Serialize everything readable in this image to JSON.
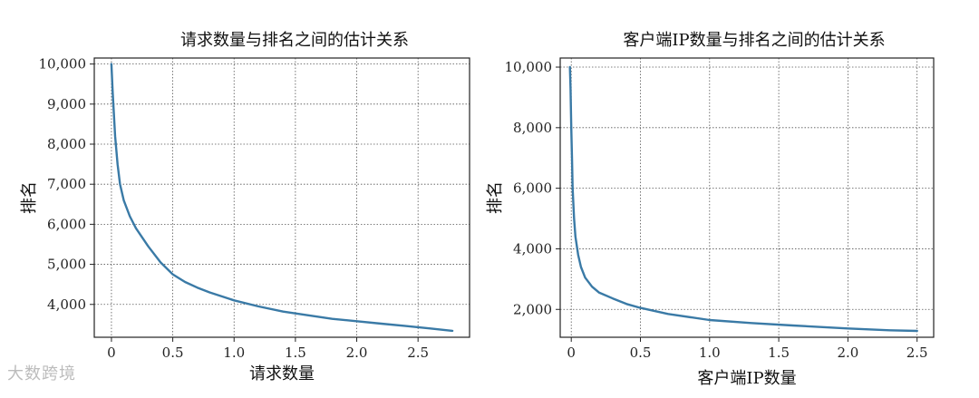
{
  "watermark": "大数跨境",
  "chart_data": [
    {
      "type": "line",
      "title": "请求数量与排名之间的估计关系",
      "xlabel": "请求数量",
      "ylabel": "排名",
      "xlim": [
        -0.14,
        2.92
      ],
      "ylim": [
        3180,
        10150
      ],
      "xticks": [
        0,
        0.5,
        1.0,
        1.5,
        2.0,
        2.5
      ],
      "xtick_labels": [
        "0",
        "0.5",
        "1.0",
        "1.5",
        "2.0",
        "2.5"
      ],
      "yticks": [
        4000,
        5000,
        6000,
        7000,
        8000,
        9000,
        10000
      ],
      "ytick_labels": [
        "4,000",
        "5,000",
        "6,000",
        "7,000",
        "8,000",
        "9,000",
        "10,000"
      ],
      "grid": true,
      "color": "#3a7aa6",
      "series": [
        {
          "x": [
            0,
            0.01,
            0.03,
            0.05,
            0.07,
            0.1,
            0.15,
            0.2,
            0.3,
            0.4,
            0.5,
            0.6,
            0.7,
            0.8,
            1.0,
            1.2,
            1.4,
            1.6,
            1.8,
            2.0,
            2.2,
            2.4,
            2.6,
            2.78
          ],
          "y": [
            10000,
            9300,
            8200,
            7500,
            7000,
            6600,
            6200,
            5900,
            5450,
            5050,
            4750,
            4560,
            4420,
            4300,
            4100,
            3950,
            3820,
            3730,
            3640,
            3580,
            3520,
            3460,
            3400,
            3340
          ]
        }
      ]
    },
    {
      "type": "line",
      "title": "客户端IP数量与排名之间的估计关系",
      "xlabel": "客户端IP数量",
      "ylabel": "排名",
      "xlim": [
        -0.08,
        2.62
      ],
      "ylim": [
        1080,
        10300
      ],
      "xticks": [
        0,
        0.5,
        1.0,
        1.5,
        2.0,
        2.5
      ],
      "xtick_labels": [
        "0",
        "0.5",
        "1.0",
        "1.5",
        "2.0",
        "2.5"
      ],
      "yticks": [
        2000,
        4000,
        6000,
        8000,
        10000
      ],
      "ytick_labels": [
        "2,000",
        "4,000",
        "6,000",
        "8,000",
        "10,000"
      ],
      "grid": true,
      "color": "#3a7aa6",
      "series": [
        {
          "x": [
            -0.01,
            -0.005,
            0,
            0.005,
            0.01,
            0.02,
            0.03,
            0.05,
            0.07,
            0.1,
            0.15,
            0.2,
            0.3,
            0.4,
            0.5,
            0.7,
            1.0,
            1.3,
            1.6,
            2.0,
            2.3,
            2.5
          ],
          "y": [
            10000,
            9300,
            8000,
            7000,
            6000,
            5000,
            4400,
            3800,
            3400,
            3050,
            2750,
            2560,
            2360,
            2180,
            2050,
            1850,
            1650,
            1550,
            1470,
            1370,
            1310,
            1290
          ]
        }
      ]
    }
  ]
}
